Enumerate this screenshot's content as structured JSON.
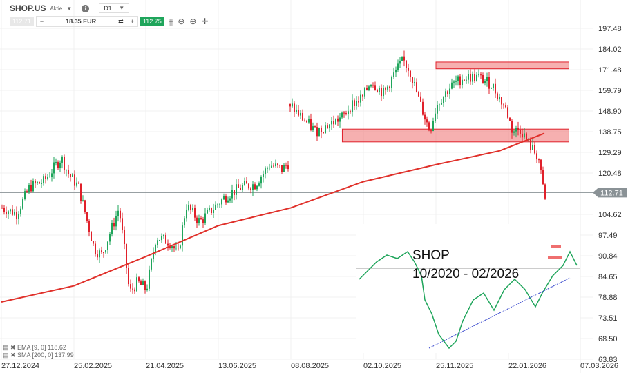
{
  "header": {
    "symbol": "SHOP.US",
    "type": "Aktie",
    "timeframe": "D1",
    "sell_price": "112.71",
    "quantity": "18.35 EUR",
    "buy_price": "112.75",
    "minus": "−",
    "plus": "+"
  },
  "legend": [
    {
      "label": "EMA [9, 0] 118.62"
    },
    {
      "label": "SMA [200, 0] 137.99"
    }
  ],
  "inset": {
    "title": "SHOP",
    "range": "10/2020 - 02/2026"
  },
  "colors": {
    "up": "#1fa55b",
    "down": "#e0202a",
    "sma": "#e0302a",
    "zone": "#ef6f6f",
    "price_line": "#8a9296",
    "trendline": "#3344cc"
  },
  "chart_data": {
    "type": "candlestick",
    "scale": "log",
    "ylim": [
      63.83,
      197.48
    ],
    "y_ticks": [
      "197.48",
      "184.02",
      "171.48",
      "159.79",
      "148.90",
      "138.75",
      "129.29",
      "120.48",
      "104.62",
      "97.49",
      "90.84",
      "84.65",
      "78.88",
      "73.51",
      "68.50",
      "63.83"
    ],
    "x_ticks": [
      "27.12.2024",
      "25.02.2025",
      "21.04.2025",
      "13.06.2025",
      "08.08.2025",
      "02.10.2025",
      "25.11.2025",
      "22.01.2026",
      "07.03.2026"
    ],
    "current_price": "112.71",
    "approx_closes": [
      [
        "2024-12-27",
        107
      ],
      [
        "2025-01-08",
        105
      ],
      [
        "2025-01-19",
        115
      ],
      [
        "2025-01-30",
        117
      ],
      [
        "2025-02-04",
        120
      ],
      [
        "2025-02-14",
        127
      ],
      [
        "2025-02-20",
        120
      ],
      [
        "2025-02-28",
        115
      ],
      [
        "2025-03-12",
        93
      ],
      [
        "2025-03-18",
        91
      ],
      [
        "2025-03-31",
        107
      ],
      [
        "2025-04-04",
        93
      ],
      [
        "2025-04-08",
        80
      ],
      [
        "2025-04-14",
        83
      ],
      [
        "2025-04-21",
        81
      ],
      [
        "2025-04-28",
        97
      ],
      [
        "2025-05-09",
        95
      ],
      [
        "2025-05-14",
        91
      ],
      [
        "2025-05-20",
        108
      ],
      [
        "2025-05-30",
        102
      ],
      [
        "2025-06-09",
        107
      ],
      [
        "2025-06-20",
        112
      ],
      [
        "2025-07-01",
        115
      ],
      [
        "2025-07-11",
        116
      ],
      [
        "2025-07-22",
        124
      ],
      [
        "2025-08-01",
        122
      ],
      [
        "2025-08-06",
        125
      ],
      [
        "2025-08-07",
        152
      ],
      [
        "2025-08-15",
        146
      ],
      [
        "2025-08-26",
        139
      ],
      [
        "2025-09-05",
        142
      ],
      [
        "2025-09-16",
        146
      ],
      [
        "2025-09-22",
        152
      ],
      [
        "2025-10-01",
        156
      ],
      [
        "2025-10-07",
        165
      ],
      [
        "2025-10-17",
        158
      ],
      [
        "2025-10-23",
        167
      ],
      [
        "2025-10-31",
        177
      ],
      [
        "2025-11-05",
        171
      ],
      [
        "2025-11-13",
        152
      ],
      [
        "2025-11-20",
        139
      ],
      [
        "2025-11-25",
        152
      ],
      [
        "2025-12-05",
        161
      ],
      [
        "2025-12-16",
        167
      ],
      [
        "2025-12-28",
        167
      ],
      [
        "2026-01-08",
        163
      ],
      [
        "2026-01-20",
        149
      ],
      [
        "2026-01-24",
        139
      ],
      [
        "2026-01-29",
        140
      ],
      [
        "2026-02-03",
        133
      ],
      [
        "2026-02-09",
        127
      ],
      [
        "2026-02-11",
        117
      ],
      [
        "2026-02-13",
        110
      ]
    ],
    "sma_200": [
      [
        "2024-12-27",
        77.6
      ],
      [
        "2025-02-25",
        82
      ],
      [
        "2025-04-21",
        90.6
      ],
      [
        "2025-06-13",
        100.7
      ],
      [
        "2025-08-08",
        107
      ],
      [
        "2025-10-02",
        117
      ],
      [
        "2025-11-25",
        124
      ],
      [
        "2026-01-15",
        130
      ],
      [
        "2026-02-13",
        138
      ]
    ],
    "zones": [
      {
        "from": "2025-11-25",
        "to": "2026-02-28",
        "low": 172,
        "high": 176
      },
      {
        "from": "2025-09-16",
        "to": "2026-02-28",
        "low": 134,
        "high": 140
      }
    ]
  }
}
